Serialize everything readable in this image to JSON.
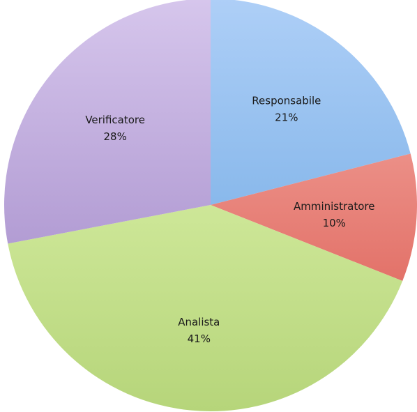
{
  "chart_data": {
    "type": "pie",
    "title": "",
    "legend": "none",
    "start_angle_deg": 0,
    "direction": "clockwise",
    "slices": [
      {
        "label": "Responsabile",
        "value": 21,
        "value_label": "21%",
        "color_light": "#aecff7",
        "color_dark": "#64a2df"
      },
      {
        "label": "Amministratore",
        "value": 10,
        "value_label": "10%",
        "color_light": "#f7b3ac",
        "color_dark": "#d9544a"
      },
      {
        "label": "Analista",
        "value": 41,
        "value_label": "41%",
        "color_light": "#e5f9b6",
        "color_dark": "#b6d57a"
      },
      {
        "label": "Verificatore",
        "value": 28,
        "value_label": "28%",
        "color_light": "#d6c6ec",
        "color_dark": "#9a80c3"
      }
    ]
  }
}
